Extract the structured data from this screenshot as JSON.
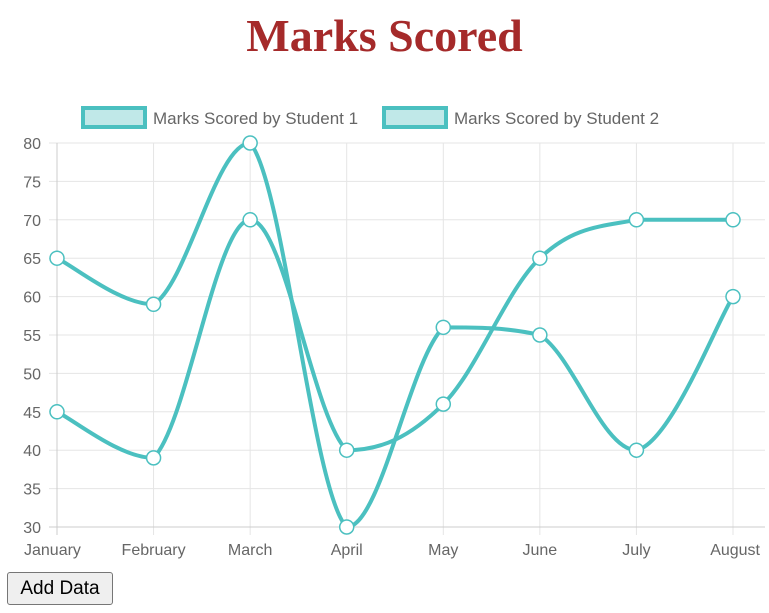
{
  "page": {
    "title": "Marks Scored",
    "title_color": "#a52a2a"
  },
  "controls": {
    "add_data_label": "Add Data"
  },
  "chart_data": {
    "type": "line",
    "title": "",
    "xlabel": "",
    "ylabel": "",
    "categories": [
      "January",
      "February",
      "March",
      "April",
      "May",
      "June",
      "July",
      "August"
    ],
    "ylim": [
      30,
      80
    ],
    "ytick_step": 5,
    "grid": true,
    "legend_position": "top",
    "line_color": "#4bc0c0",
    "fill_color": "#c0e8e8",
    "point_fill": "#ffffff",
    "series": [
      {
        "name": "Marks Scored by Student 1",
        "values": [
          65,
          59,
          80,
          30,
          56,
          55,
          40,
          60
        ]
      },
      {
        "name": "Marks Scored by Student 2",
        "values": [
          45,
          39,
          70,
          40,
          46,
          65,
          70,
          70
        ]
      }
    ]
  }
}
